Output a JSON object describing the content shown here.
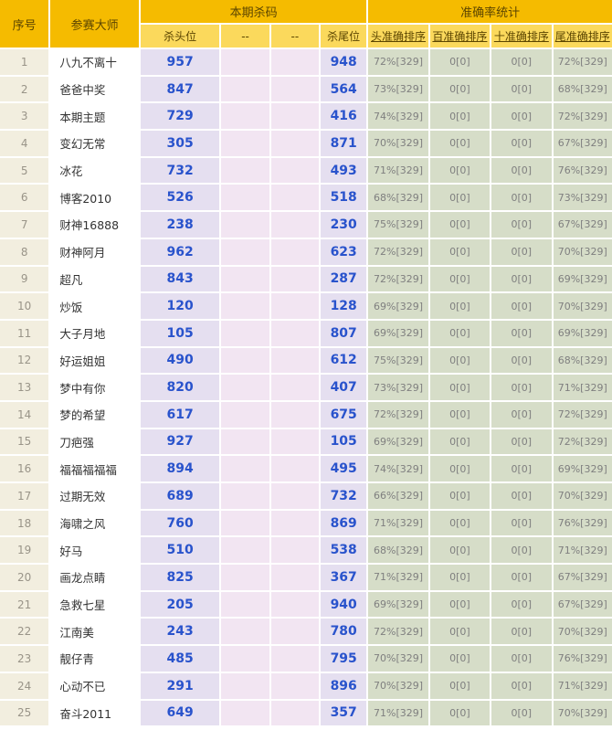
{
  "colors": {
    "deep_gold": "#F5BB00",
    "light_yellow": "#FBD95C",
    "header_text": "#5B4500",
    "seq_bg": "#F2EEDF",
    "seq_text": "#999488",
    "name_bg": "#FFFFFF",
    "name_text": "#333333",
    "kill_bg": "#E5DFF0",
    "mid_bg": "#F2E5F2",
    "acc_bg": "#D6DDC8",
    "acc_text": "#7F7F7F",
    "num_blue": "#2953CC"
  },
  "table": {
    "headers": {
      "seq": "序号",
      "master": "参赛大师",
      "kill_group": "本期杀码",
      "accuracy_group": "准确率统计",
      "sub": [
        "杀头位",
        "--",
        "--",
        "杀尾位",
        "头准确排序",
        "百准确排序",
        "十准确排序",
        "尾准确排序"
      ]
    },
    "rows": [
      {
        "seq": "1",
        "name": "八九不离十",
        "kill_head": "957",
        "mid1": "",
        "mid2": "",
        "kill_tail": "948",
        "acc_head": "72%[329]",
        "acc_hundred": "0[0]",
        "acc_ten": "0[0]",
        "acc_tail": "72%[329]"
      },
      {
        "seq": "2",
        "name": "爸爸中奖",
        "kill_head": "847",
        "mid1": "",
        "mid2": "",
        "kill_tail": "564",
        "acc_head": "73%[329]",
        "acc_hundred": "0[0]",
        "acc_ten": "0[0]",
        "acc_tail": "68%[329]"
      },
      {
        "seq": "3",
        "name": "本期主题",
        "kill_head": "729",
        "mid1": "",
        "mid2": "",
        "kill_tail": "416",
        "acc_head": "74%[329]",
        "acc_hundred": "0[0]",
        "acc_ten": "0[0]",
        "acc_tail": "72%[329]"
      },
      {
        "seq": "4",
        "name": "变幻无常",
        "kill_head": "305",
        "mid1": "",
        "mid2": "",
        "kill_tail": "871",
        "acc_head": "70%[329]",
        "acc_hundred": "0[0]",
        "acc_ten": "0[0]",
        "acc_tail": "67%[329]"
      },
      {
        "seq": "5",
        "name": "冰花",
        "kill_head": "732",
        "mid1": "",
        "mid2": "",
        "kill_tail": "493",
        "acc_head": "71%[329]",
        "acc_hundred": "0[0]",
        "acc_ten": "0[0]",
        "acc_tail": "76%[329]"
      },
      {
        "seq": "6",
        "name": "博客2010",
        "kill_head": "526",
        "mid1": "",
        "mid2": "",
        "kill_tail": "518",
        "acc_head": "68%[329]",
        "acc_hundred": "0[0]",
        "acc_ten": "0[0]",
        "acc_tail": "73%[329]"
      },
      {
        "seq": "7",
        "name": "财神16888",
        "kill_head": "238",
        "mid1": "",
        "mid2": "",
        "kill_tail": "230",
        "acc_head": "75%[329]",
        "acc_hundred": "0[0]",
        "acc_ten": "0[0]",
        "acc_tail": "67%[329]"
      },
      {
        "seq": "8",
        "name": "财神阿月",
        "kill_head": "962",
        "mid1": "",
        "mid2": "",
        "kill_tail": "623",
        "acc_head": "72%[329]",
        "acc_hundred": "0[0]",
        "acc_ten": "0[0]",
        "acc_tail": "70%[329]"
      },
      {
        "seq": "9",
        "name": "超凡",
        "kill_head": "843",
        "mid1": "",
        "mid2": "",
        "kill_tail": "287",
        "acc_head": "72%[329]",
        "acc_hundred": "0[0]",
        "acc_ten": "0[0]",
        "acc_tail": "69%[329]"
      },
      {
        "seq": "10",
        "name": "炒饭",
        "kill_head": "120",
        "mid1": "",
        "mid2": "",
        "kill_tail": "128",
        "acc_head": "69%[329]",
        "acc_hundred": "0[0]",
        "acc_ten": "0[0]",
        "acc_tail": "70%[329]"
      },
      {
        "seq": "11",
        "name": "大子月地",
        "kill_head": "105",
        "mid1": "",
        "mid2": "",
        "kill_tail": "807",
        "acc_head": "69%[329]",
        "acc_hundred": "0[0]",
        "acc_ten": "0[0]",
        "acc_tail": "69%[329]"
      },
      {
        "seq": "12",
        "name": "好运姐姐",
        "kill_head": "490",
        "mid1": "",
        "mid2": "",
        "kill_tail": "612",
        "acc_head": "75%[329]",
        "acc_hundred": "0[0]",
        "acc_ten": "0[0]",
        "acc_tail": "68%[329]"
      },
      {
        "seq": "13",
        "name": "梦中有你",
        "kill_head": "820",
        "mid1": "",
        "mid2": "",
        "kill_tail": "407",
        "acc_head": "73%[329]",
        "acc_hundred": "0[0]",
        "acc_ten": "0[0]",
        "acc_tail": "71%[329]"
      },
      {
        "seq": "14",
        "name": "梦的希望",
        "kill_head": "617",
        "mid1": "",
        "mid2": "",
        "kill_tail": "675",
        "acc_head": "72%[329]",
        "acc_hundred": "0[0]",
        "acc_ten": "0[0]",
        "acc_tail": "72%[329]"
      },
      {
        "seq": "15",
        "name": "刀疤强",
        "kill_head": "927",
        "mid1": "",
        "mid2": "",
        "kill_tail": "105",
        "acc_head": "69%[329]",
        "acc_hundred": "0[0]",
        "acc_ten": "0[0]",
        "acc_tail": "72%[329]"
      },
      {
        "seq": "16",
        "name": "福福福福福",
        "kill_head": "894",
        "mid1": "",
        "mid2": "",
        "kill_tail": "495",
        "acc_head": "74%[329]",
        "acc_hundred": "0[0]",
        "acc_ten": "0[0]",
        "acc_tail": "69%[329]"
      },
      {
        "seq": "17",
        "name": "过期无效",
        "kill_head": "689",
        "mid1": "",
        "mid2": "",
        "kill_tail": "732",
        "acc_head": "66%[329]",
        "acc_hundred": "0[0]",
        "acc_ten": "0[0]",
        "acc_tail": "70%[329]"
      },
      {
        "seq": "18",
        "name": "海啸之风",
        "kill_head": "760",
        "mid1": "",
        "mid2": "",
        "kill_tail": "869",
        "acc_head": "71%[329]",
        "acc_hundred": "0[0]",
        "acc_ten": "0[0]",
        "acc_tail": "76%[329]"
      },
      {
        "seq": "19",
        "name": "好马",
        "kill_head": "510",
        "mid1": "",
        "mid2": "",
        "kill_tail": "538",
        "acc_head": "68%[329]",
        "acc_hundred": "0[0]",
        "acc_ten": "0[0]",
        "acc_tail": "71%[329]"
      },
      {
        "seq": "20",
        "name": "画龙点睛",
        "kill_head": "825",
        "mid1": "",
        "mid2": "",
        "kill_tail": "367",
        "acc_head": "71%[329]",
        "acc_hundred": "0[0]",
        "acc_ten": "0[0]",
        "acc_tail": "67%[329]"
      },
      {
        "seq": "21",
        "name": "急救七星",
        "kill_head": "205",
        "mid1": "",
        "mid2": "",
        "kill_tail": "940",
        "acc_head": "69%[329]",
        "acc_hundred": "0[0]",
        "acc_ten": "0[0]",
        "acc_tail": "67%[329]"
      },
      {
        "seq": "22",
        "name": "江南美",
        "kill_head": "243",
        "mid1": "",
        "mid2": "",
        "kill_tail": "780",
        "acc_head": "72%[329]",
        "acc_hundred": "0[0]",
        "acc_ten": "0[0]",
        "acc_tail": "70%[329]"
      },
      {
        "seq": "23",
        "name": "靓仔青",
        "kill_head": "485",
        "mid1": "",
        "mid2": "",
        "kill_tail": "795",
        "acc_head": "70%[329]",
        "acc_hundred": "0[0]",
        "acc_ten": "0[0]",
        "acc_tail": "76%[329]"
      },
      {
        "seq": "24",
        "name": "心动不已",
        "kill_head": "291",
        "mid1": "",
        "mid2": "",
        "kill_tail": "896",
        "acc_head": "70%[329]",
        "acc_hundred": "0[0]",
        "acc_ten": "0[0]",
        "acc_tail": "71%[329]"
      },
      {
        "seq": "25",
        "name": "奋斗2011",
        "kill_head": "649",
        "mid1": "",
        "mid2": "",
        "kill_tail": "357",
        "acc_head": "71%[329]",
        "acc_hundred": "0[0]",
        "acc_ten": "0[0]",
        "acc_tail": "70%[329]"
      }
    ]
  }
}
